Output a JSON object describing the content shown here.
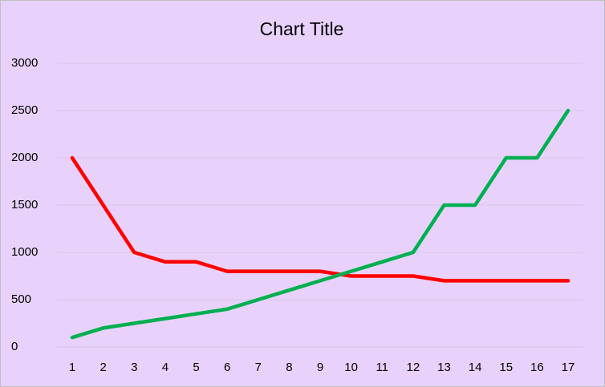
{
  "chart_data": {
    "type": "line",
    "title": "Chart Title",
    "categories": [
      "1",
      "2",
      "3",
      "4",
      "5",
      "6",
      "7",
      "8",
      "9",
      "10",
      "11",
      "12",
      "13",
      "14",
      "15",
      "16",
      "17"
    ],
    "series": [
      {
        "color": "#ff0000",
        "values": [
          2000,
          1500,
          1000,
          900,
          900,
          800,
          800,
          800,
          800,
          750,
          750,
          750,
          700,
          700,
          700,
          700,
          700
        ]
      },
      {
        "color": "#00b050",
        "values": [
          100,
          200,
          250,
          300,
          350,
          400,
          500,
          600,
          700,
          800,
          900,
          1000,
          1500,
          1500,
          2000,
          2000,
          2500
        ]
      }
    ],
    "ylim": [
      0,
      3000
    ],
    "yticks": [
      0,
      500,
      1000,
      1500,
      2000,
      2500,
      3000
    ],
    "grid": true
  }
}
